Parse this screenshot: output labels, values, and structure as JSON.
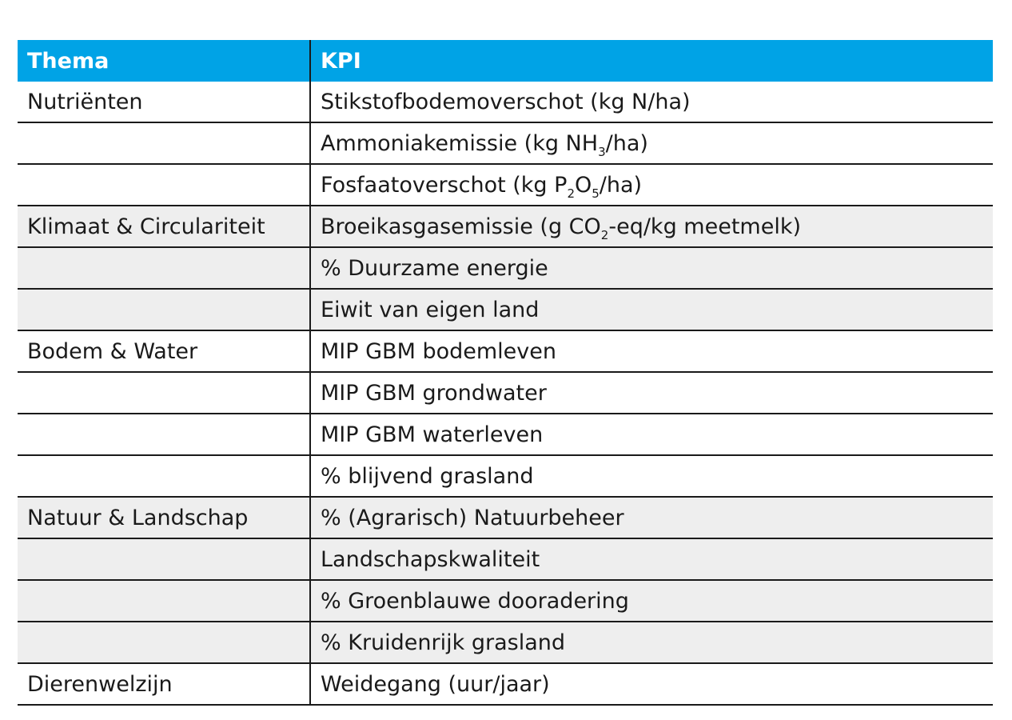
{
  "table": {
    "headers": {
      "theme": "Thema",
      "kpi": "KPI"
    },
    "rows": [
      {
        "theme": "Nutriënten",
        "kpi": [
          "Stikstofbodemoverschot (kg N/ha)"
        ],
        "shaded": false
      },
      {
        "theme": "",
        "kpi": [
          "Ammoniakemissie (kg NH",
          "3",
          "/ha)"
        ],
        "shaded": false
      },
      {
        "theme": "",
        "kpi": [
          "Fosfaatoverschot (kg P",
          "2",
          "O",
          "5",
          "/ha)"
        ],
        "shaded": false
      },
      {
        "theme": "Klimaat & Circulariteit",
        "kpi": [
          "Broeikasgasemissie (g CO",
          "2",
          "-eq/kg meetmelk)"
        ],
        "shaded": true
      },
      {
        "theme": "",
        "kpi": [
          "% Duurzame energie"
        ],
        "shaded": true
      },
      {
        "theme": "",
        "kpi": [
          "Eiwit van eigen land"
        ],
        "shaded": true
      },
      {
        "theme": "Bodem & Water",
        "kpi": [
          "MIP GBM bodemleven"
        ],
        "shaded": false
      },
      {
        "theme": "",
        "kpi": [
          "MIP GBM grondwater"
        ],
        "shaded": false
      },
      {
        "theme": "",
        "kpi": [
          "MIP GBM waterleven"
        ],
        "shaded": false
      },
      {
        "theme": "",
        "kpi": [
          "% blijvend grasland"
        ],
        "shaded": false
      },
      {
        "theme": "Natuur & Landschap",
        "kpi": [
          "% (Agrarisch) Natuurbeheer"
        ],
        "shaded": true
      },
      {
        "theme": "",
        "kpi": [
          "Landschapskwaliteit"
        ],
        "shaded": true
      },
      {
        "theme": "",
        "kpi": [
          "% Groenblauwe dooradering"
        ],
        "shaded": true
      },
      {
        "theme": "",
        "kpi": [
          "% Kruidenrijk grasland"
        ],
        "shaded": true
      },
      {
        "theme": "Dierenwelzijn",
        "kpi": [
          "Weidegang (uur/jaar)"
        ],
        "shaded": false
      }
    ]
  },
  "colors": {
    "header_bg": "#00a3e6",
    "header_text": "#ffffff",
    "shade": "#eeeeee",
    "rule": "#1a1a1a"
  }
}
